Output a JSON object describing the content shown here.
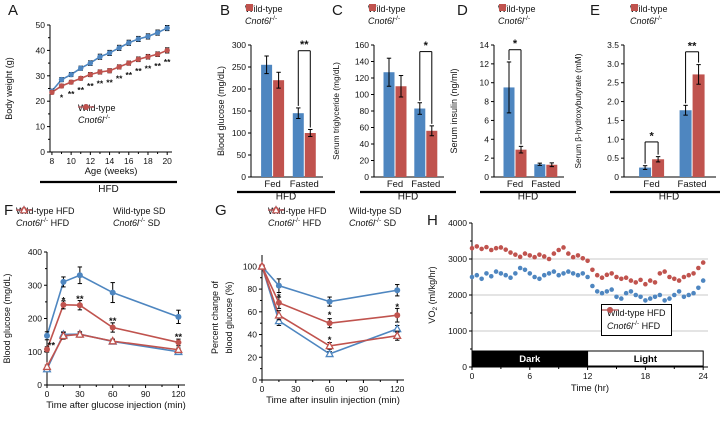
{
  "colors": {
    "wild_type": "#4e86c0",
    "cnot6l": "#c0534e",
    "axis": "#000000",
    "grid": "#c9c9c9",
    "background": "#ffffff"
  },
  "chart_data": [
    {
      "panel": "A",
      "type": "line",
      "xlabel": "Age (weeks)",
      "ylabel": "Body weight (g)",
      "footer": "HFD",
      "xlim": [
        7.8,
        20.5
      ],
      "ylim": [
        0,
        50
      ],
      "xticks": [
        8,
        10,
        12,
        14,
        16,
        18,
        20
      ],
      "xminor": [
        9,
        11,
        13,
        15,
        17,
        19
      ],
      "yticks": [
        0,
        10,
        20,
        30,
        40,
        50
      ],
      "yminor": [
        5,
        15,
        25,
        35,
        45
      ],
      "x": [
        8,
        9,
        10,
        11,
        12,
        13,
        14,
        15,
        16,
        17,
        18,
        19,
        20
      ],
      "series": [
        {
          "name": "Wild-type",
          "color": "wild_type",
          "marker": "circle",
          "values": [
            24,
            28.5,
            30.5,
            33,
            35,
            37.5,
            39,
            41,
            43,
            44.5,
            45.5,
            47,
            48.8
          ],
          "err": [
            0.8,
            0.8,
            0.8,
            0.8,
            0.9,
            1,
            1,
            1,
            1,
            1,
            1,
            1,
            1
          ]
        },
        {
          "name": "Cnot6l-/-",
          "color": "cnot6l",
          "marker": "circle",
          "values": [
            23.5,
            26,
            27.5,
            29,
            30.5,
            31.5,
            32,
            33.5,
            35,
            36.5,
            37.5,
            38.5,
            40
          ],
          "err": [
            0.7,
            0.7,
            0.7,
            0.7,
            0.8,
            0.8,
            0.8,
            0.8,
            0.8,
            0.9,
            0.9,
            0.9,
            1
          ]
        }
      ],
      "annotations": [
        {
          "x": 9,
          "y": 21.8,
          "text": "*"
        },
        {
          "x": 10,
          "y": 23.3,
          "text": "**"
        },
        {
          "x": 11,
          "y": 24.8,
          "text": "**"
        },
        {
          "x": 12,
          "y": 26.3,
          "text": "**"
        },
        {
          "x": 13,
          "y": 27.3,
          "text": "**"
        },
        {
          "x": 14,
          "y": 27.8,
          "text": "**"
        },
        {
          "x": 15,
          "y": 29.3,
          "text": "**"
        },
        {
          "x": 16,
          "y": 30.8,
          "text": "**"
        },
        {
          "x": 17,
          "y": 32.3,
          "text": "**"
        },
        {
          "x": 18,
          "y": 33.3,
          "text": "**"
        },
        {
          "x": 19,
          "y": 34.3,
          "text": "**"
        },
        {
          "x": 20,
          "y": 35.8,
          "text": "**"
        }
      ],
      "legend": {
        "entries": [
          {
            "label": "Wild-type",
            "color": "wild_type",
            "marker": "circle"
          },
          {
            "label": "Cnot6l-/-",
            "color": "cnot6l",
            "marker": "circle"
          }
        ]
      }
    },
    {
      "panel": "B",
      "type": "bar",
      "ylabel": "Blood glucose (mg/dL)",
      "footer": "HFD",
      "ylim": [
        0,
        300
      ],
      "yticks": [
        0,
        50,
        100,
        150,
        200,
        250,
        300
      ],
      "categories": [
        "Fed",
        "Fasted"
      ],
      "series": [
        {
          "name": "Wild-type",
          "color": "wild_type",
          "values": [
            255,
            145
          ],
          "err": [
            20,
            12
          ]
        },
        {
          "name": "Cnot6l-/-",
          "color": "cnot6l",
          "values": [
            220,
            100
          ],
          "err": [
            18,
            8
          ]
        }
      ],
      "brackets": [
        {
          "category": 1,
          "text": "**",
          "top": 287
        }
      ],
      "legend": {
        "entries": [
          {
            "label": "Wild-type",
            "color": "wild_type",
            "marker": "square"
          },
          {
            "label": "Cnot6l-/-",
            "color": "cnot6l",
            "marker": "square"
          }
        ]
      }
    },
    {
      "panel": "C",
      "type": "bar",
      "ylabel": "Serum triglyceride (mg/dL)",
      "footer": "HFD",
      "ylim": [
        0,
        160
      ],
      "yticks": [
        0,
        20,
        40,
        60,
        80,
        100,
        120,
        140,
        160
      ],
      "categories": [
        "Fed",
        "Fasted"
      ],
      "series": [
        {
          "name": "Wild-type",
          "color": "wild_type",
          "values": [
            127,
            83
          ],
          "err": [
            17,
            7
          ]
        },
        {
          "name": "Cnot6l-/-",
          "color": "cnot6l",
          "values": [
            110,
            56
          ],
          "err": [
            13,
            6
          ]
        }
      ],
      "brackets": [
        {
          "category": 1,
          "text": "*",
          "top": 152
        }
      ],
      "legend": {
        "entries": [
          {
            "label": "Wild-type",
            "color": "wild_type",
            "marker": "square"
          },
          {
            "label": "Cnot6l-/-",
            "color": "cnot6l",
            "marker": "square"
          }
        ]
      }
    },
    {
      "panel": "D",
      "type": "bar",
      "ylabel": "Serum insulin (ng/ml)",
      "footer": "HFD",
      "ylim": [
        0,
        14
      ],
      "yticks": [
        0,
        2,
        4,
        6,
        8,
        10,
        12,
        14
      ],
      "categories": [
        "Fed",
        "Fasted"
      ],
      "series": [
        {
          "name": "Wild-type",
          "color": "wild_type",
          "values": [
            9.5,
            1.35
          ],
          "err": [
            2.7,
            0.12
          ]
        },
        {
          "name": "Cnot6l-/-",
          "color": "cnot6l",
          "values": [
            2.9,
            1.3
          ],
          "err": [
            0.35,
            0.2
          ]
        }
      ],
      "brackets": [
        {
          "category": 0,
          "text": "*",
          "top": 13.5
        }
      ],
      "legend": {
        "entries": [
          {
            "label": "Wild-type",
            "color": "wild_type",
            "marker": "square"
          },
          {
            "label": "Cnot6l-/-",
            "color": "cnot6l",
            "marker": "square"
          }
        ]
      }
    },
    {
      "panel": "E",
      "type": "bar",
      "ylabel": "Serum β-hydroxybutyrate (mM)",
      "footer": "HFD",
      "ylim": [
        0,
        3.5
      ],
      "yticks": [
        0,
        0.5,
        1,
        1.5,
        2,
        2.5,
        3,
        3.5
      ],
      "yticklabels": [
        "0",
        "0.5",
        "1.0",
        "1.5",
        "2.0",
        "2.5",
        "3.0",
        "3.5"
      ],
      "categories": [
        "Fed",
        "Fasted"
      ],
      "series": [
        {
          "name": "Wild-type",
          "color": "wild_type",
          "values": [
            0.25,
            1.77
          ],
          "err": [
            0.05,
            0.13
          ]
        },
        {
          "name": "Cnot6l-/-",
          "color": "cnot6l",
          "values": [
            0.47,
            2.72
          ],
          "err": [
            0.07,
            0.26
          ]
        }
      ],
      "brackets": [
        {
          "category": 0,
          "text": "*",
          "top": 0.93
        },
        {
          "category": 1,
          "text": "**",
          "top": 3.32
        }
      ],
      "legend": {
        "entries": [
          {
            "label": "Wild-type",
            "color": "wild_type",
            "marker": "square"
          },
          {
            "label": "Cnot6l-/-",
            "color": "cnot6l",
            "marker": "square"
          }
        ]
      }
    },
    {
      "panel": "F",
      "type": "line",
      "xlabel": "Time after glucose injection (min)",
      "ylabel": "Blood glucose (mg/dL)",
      "xlim": [
        0,
        126
      ],
      "ylim": [
        0,
        400
      ],
      "xticks": [
        0,
        30,
        60,
        90,
        120
      ],
      "xminor": [
        15,
        45,
        75,
        105
      ],
      "yticks": [
        0,
        100,
        200,
        300,
        400
      ],
      "yminor": [
        50,
        150,
        250,
        350
      ],
      "x": [
        0,
        15,
        30,
        60,
        120
      ],
      "series": [
        {
          "name": "Wild-type HFD",
          "color": "wild_type",
          "marker": "circle",
          "values": [
            148,
            310,
            330,
            278,
            205
          ],
          "err": [
            12,
            15,
            25,
            30,
            20
          ]
        },
        {
          "name": "Wild-type SD",
          "color": "wild_type",
          "marker": "triangle",
          "values": [
            48,
            152,
            153,
            131,
            100
          ],
          "err": [
            5,
            8,
            6,
            6,
            6
          ]
        },
        {
          "name": "Cnot6l-/- HFD",
          "color": "cnot6l",
          "marker": "circle",
          "values": [
            107,
            241,
            240,
            173,
            128
          ],
          "err": [
            8,
            12,
            14,
            14,
            10
          ]
        },
        {
          "name": "Cnot6l-/- SD",
          "color": "cnot6l",
          "marker": "triangle",
          "values": [
            55,
            148,
            152,
            132,
            106
          ],
          "err": [
            5,
            10,
            8,
            6,
            5
          ]
        }
      ],
      "annotations": [
        {
          "x": 4,
          "y": 122,
          "text": "**"
        },
        {
          "x": 15,
          "y": 257,
          "text": "*"
        },
        {
          "x": 30,
          "y": 262,
          "text": "**"
        },
        {
          "x": 60,
          "y": 196,
          "text": "**"
        },
        {
          "x": 120,
          "y": 148,
          "text": "**"
        }
      ],
      "legend": {
        "entries": [
          {
            "label": "Wild-type HFD",
            "color": "wild_type",
            "marker": "circle"
          },
          {
            "label": "Wild-type SD",
            "color": "wild_type",
            "marker": "triangle"
          },
          {
            "label": "Cnot6l-/- HFD",
            "color": "cnot6l",
            "marker": "circle"
          },
          {
            "label": "Cnot6l-/- SD",
            "color": "cnot6l",
            "marker": "triangle"
          }
        ]
      }
    },
    {
      "panel": "G",
      "type": "line",
      "xlabel": "Time after insulin injection (min)",
      "ylabel": [
        "Percent change of",
        "blood glucose (%)"
      ],
      "xlim": [
        0,
        126
      ],
      "ylim": [
        0,
        110
      ],
      "xticks": [
        0,
        30,
        60,
        90,
        120
      ],
      "xminor": [
        15,
        45,
        75,
        105
      ],
      "yticks": [
        0,
        20,
        40,
        60,
        80,
        100
      ],
      "yminor": [
        10,
        30,
        50,
        70,
        90
      ],
      "x": [
        0,
        15,
        60,
        120
      ],
      "series": [
        {
          "name": "Wild-type HFD",
          "color": "wild_type",
          "marker": "circle",
          "values": [
            100,
            83,
            69,
            79
          ],
          "err": [
            0,
            6,
            4,
            5
          ]
        },
        {
          "name": "Wild-type SD",
          "color": "wild_type",
          "marker": "triangle",
          "values": [
            100,
            52,
            23,
            45
          ],
          "err": [
            0,
            4,
            2,
            3
          ]
        },
        {
          "name": "Cnot6l-/- HFD",
          "color": "cnot6l",
          "marker": "circle",
          "values": [
            100,
            68,
            50,
            57
          ],
          "err": [
            0,
            5,
            4,
            6
          ]
        },
        {
          "name": "Cnot6l-/- SD",
          "color": "cnot6l",
          "marker": "triangle",
          "values": [
            100,
            57,
            30,
            39
          ],
          "err": [
            0,
            4,
            3,
            4
          ]
        }
      ],
      "annotations": [
        {
          "x": 15,
          "y": 74,
          "text": "*"
        },
        {
          "x": 60,
          "y": 58,
          "text": "*"
        },
        {
          "x": 60,
          "y": 36,
          "text": "*"
        },
        {
          "x": 120,
          "y": 65,
          "text": "*"
        }
      ],
      "legend": {
        "entries": [
          {
            "label": "Wild-type HFD",
            "color": "wild_type",
            "marker": "circle"
          },
          {
            "label": "Wild-type SD",
            "color": "wild_type",
            "marker": "triangle"
          },
          {
            "label": "Cnot6l-/- HFD",
            "color": "cnot6l",
            "marker": "circle"
          },
          {
            "label": "Cnot6l-/- SD",
            "color": "cnot6l",
            "marker": "triangle"
          }
        ]
      }
    },
    {
      "panel": "H",
      "type": "scatter",
      "xlabel": "Time (hr)",
      "ylabel": "VO2 (ml/kg/hr)",
      "xlim": [
        0,
        24.5
      ],
      "ylim": [
        0,
        4000
      ],
      "xticks": [
        0,
        6,
        12,
        18,
        24
      ],
      "xminor": [
        3,
        9,
        15,
        21
      ],
      "yticks": [
        0,
        1000,
        2000,
        3000,
        4000
      ],
      "yminor": [
        500,
        1500,
        2500,
        3500
      ],
      "gridlines": [
        1000,
        2000,
        3000
      ],
      "x_step": 0.5,
      "series": [
        {
          "name": "Cnot6l-/- HFD",
          "color": "cnot6l",
          "values": [
            3300,
            3350,
            3280,
            3330,
            3250,
            3300,
            3320,
            3260,
            3180,
            3120,
            3060,
            3150,
            3100,
            3050,
            3120,
            3070,
            3000,
            3150,
            3250,
            3320,
            3150,
            3050,
            3100,
            3020,
            2950,
            2700,
            2550,
            2480,
            2560,
            2600,
            2500,
            2450,
            2480,
            2400,
            2350,
            2420,
            2300,
            2400,
            2350,
            2600,
            2650,
            2500,
            2450,
            2400,
            2500,
            2550,
            2600,
            2750,
            2900
          ]
        },
        {
          "name": "Wild-type HFD",
          "color": "wild_type",
          "values": [
            2500,
            2550,
            2450,
            2600,
            2520,
            2650,
            2600,
            2550,
            2480,
            2600,
            2750,
            2700,
            2600,
            2500,
            2450,
            2550,
            2600,
            2650,
            2550,
            2600,
            2650,
            2600,
            2550,
            2600,
            2500,
            2250,
            2100,
            2050,
            2100,
            2150,
            1950,
            1900,
            2050,
            2100,
            2000,
            1950,
            1850,
            1900,
            1950,
            2000,
            1850,
            1900,
            2000,
            2100,
            1950,
            2000,
            2050,
            2200,
            2400
          ]
        }
      ],
      "phases": [
        {
          "label": "Dark",
          "from": 0,
          "to": 12,
          "bg": "#000000",
          "fg": "#ffffff"
        },
        {
          "label": "Light",
          "from": 12,
          "to": 24,
          "bg": "#ffffff",
          "fg": "#000000"
        }
      ],
      "legend": {
        "boxed": true,
        "entries": [
          {
            "label": "Wild-type HFD",
            "color": "wild_type",
            "marker": "circle"
          },
          {
            "label": "Cnot6l-/- HFD",
            "color": "cnot6l",
            "marker": "circle"
          }
        ]
      }
    }
  ]
}
